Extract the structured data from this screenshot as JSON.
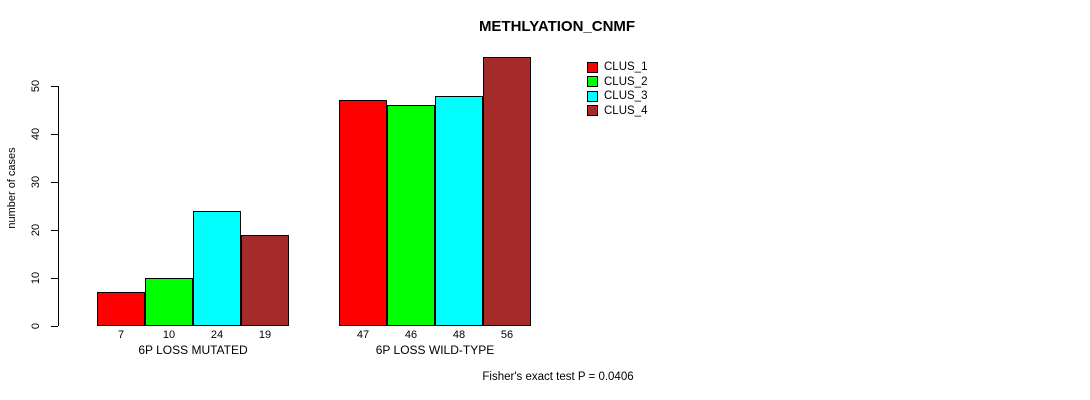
{
  "chart_data": {
    "type": "bar",
    "title": "METHLYATION_CNMF",
    "xlabel": "",
    "ylabel": "number of cases",
    "ylim": [
      0,
      56
    ],
    "yticks": [
      0,
      10,
      20,
      30,
      40,
      50
    ],
    "grid": false,
    "legend_position": "top-right",
    "categories": [
      "6P LOSS MUTATED",
      "6P LOSS WILD-TYPE"
    ],
    "series": [
      {
        "name": "CLUS_1",
        "color": "#ff0000",
        "values": [
          7,
          47
        ]
      },
      {
        "name": "CLUS_2",
        "color": "#00ff00",
        "values": [
          10,
          46
        ]
      },
      {
        "name": "CLUS_3",
        "color": "#00ffff",
        "values": [
          24,
          48
        ]
      },
      {
        "name": "CLUS_4",
        "color": "#a52a2a",
        "values": [
          19,
          56
        ]
      }
    ],
    "bar_labels": [
      [
        "7",
        "10",
        "24",
        "19"
      ],
      [
        "47",
        "46",
        "48",
        "56"
      ]
    ],
    "annotation": "Fisher's exact test P = 0.0406"
  }
}
